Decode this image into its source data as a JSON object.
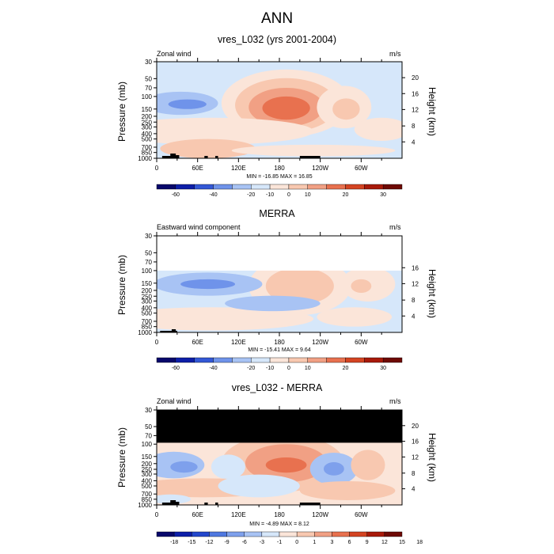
{
  "main_title": "ANN",
  "colors": {
    "c8": [
      "#08086b",
      "#0d1fa8",
      "#3358d6",
      "#6f93ea",
      "#a8c3f4",
      "#d6e7fa",
      "#fbe5d9",
      "#f8c8b0",
      "#f1a084",
      "#e8714f",
      "#d44422",
      "#a81a0a",
      "#6e0a04"
    ],
    "diff": [
      "#08086b",
      "#0d1fa8",
      "#2347cc",
      "#4f78e0",
      "#7ea0ec",
      "#a8c3f4",
      "#d6e7fa",
      "#fbe5d9",
      "#f8c8b0",
      "#f1a084",
      "#e8714f",
      "#d44422",
      "#a81a0a",
      "#6e0a04"
    ]
  },
  "panels": [
    {
      "title": "vres_L032 (yrs 2001-2004)",
      "left_label": "Zonal wind",
      "units": "m/s",
      "y_axis_title": "Pressure (mb)",
      "right_axis_title": "Height (km)",
      "minmax": "MIN = -16.85  MAX =  16.85",
      "colorbar_labels": [
        "-60",
        "-40",
        "-20",
        "-10",
        "0",
        "10",
        "20",
        "30"
      ]
    },
    {
      "title": "MERRA",
      "left_label": "Eastward wind component",
      "units": "m/s",
      "y_axis_title": "Pressure (mb)",
      "right_axis_title": "Height (km)",
      "minmax": "MIN = -15.41  MAX =   9.64",
      "colorbar_labels": [
        "-60",
        "-40",
        "-20",
        "-10",
        "0",
        "10",
        "20",
        "30"
      ]
    },
    {
      "title": "vres_L032 - MERRA",
      "left_label": "Zonal wind",
      "units": "m/s",
      "y_axis_title": "Pressure (mb)",
      "right_axis_title": "Height (km)",
      "minmax": "MIN =  -4.89  MAX =   8.12",
      "colorbar_labels": [
        "-18",
        "-15",
        "-12",
        "-9",
        "-6",
        "-3",
        "-1",
        "0",
        "1",
        "3",
        "6",
        "9",
        "12",
        "15",
        "18"
      ]
    }
  ],
  "chart_data": [
    {
      "type": "heatmap",
      "title": "vres_L032 (yrs 2001-2004)",
      "subtitle": "Zonal wind",
      "units": "m/s",
      "ylabel": "Pressure (mb)",
      "ylabel_right": "Height (km)",
      "x_ticks": [
        "0",
        "60E",
        "120E",
        "180",
        "120W",
        "60W"
      ],
      "y_ticks": [
        "30",
        "50",
        "70",
        "100",
        "150",
        "200",
        "250",
        "300",
        "400",
        "500",
        "700",
        "850",
        "1000"
      ],
      "y_ticks_right": [
        "4",
        "8",
        "12",
        "16",
        "20"
      ],
      "min": -16.85,
      "max": 16.85,
      "levels": [
        -60,
        -40,
        -20,
        -10,
        0,
        10,
        20,
        30
      ],
      "features": [
        {
          "lon": 30,
          "p": 150,
          "value": -14
        },
        {
          "lon": 190,
          "p": 150,
          "value": 16
        },
        {
          "lon": 270,
          "p": 175,
          "value": 9
        },
        {
          "lon": 70,
          "p": 700,
          "value": 6
        }
      ]
    },
    {
      "type": "heatmap",
      "title": "MERRA",
      "subtitle": "Eastward wind component",
      "units": "m/s",
      "ylabel": "Pressure (mb)",
      "ylabel_right": "Height (km)",
      "x_ticks": [
        "0",
        "60E",
        "120E",
        "180",
        "120W",
        "60W"
      ],
      "y_ticks": [
        "30",
        "50",
        "70",
        "100",
        "150",
        "200",
        "250",
        "300",
        "400",
        "500",
        "700",
        "850",
        "1000"
      ],
      "y_ticks_right": [
        "4",
        "8",
        "12",
        "16"
      ],
      "min": -15.41,
      "max": 9.64,
      "levels": [
        -60,
        -40,
        -20,
        -10,
        0,
        10,
        20,
        30
      ],
      "features": [
        {
          "lon": 70,
          "p": 150,
          "value": -14
        },
        {
          "lon": 210,
          "p": 150,
          "value": 9
        },
        {
          "lon": 300,
          "p": 150,
          "value": 6
        }
      ]
    },
    {
      "type": "heatmap",
      "title": "vres_L032 - MERRA",
      "subtitle": "Zonal wind",
      "units": "m/s",
      "ylabel": "Pressure (mb)",
      "ylabel_right": "Height (km)",
      "x_ticks": [
        "0",
        "60E",
        "120E",
        "180",
        "120W",
        "60W"
      ],
      "y_ticks": [
        "30",
        "50",
        "70",
        "100",
        "150",
        "200",
        "250",
        "300",
        "400",
        "500",
        "700",
        "850",
        "1000"
      ],
      "y_ticks_right": [
        "4",
        "8",
        "12",
        "16",
        "20"
      ],
      "min": -4.89,
      "max": 8.12,
      "levels": [
        -18,
        -15,
        -12,
        -9,
        -6,
        -3,
        -1,
        0,
        1,
        3,
        6,
        9,
        12,
        15,
        18
      ],
      "features": [
        {
          "lon": 180,
          "p": 150,
          "value": 7
        },
        {
          "lon": 260,
          "p": 200,
          "value": -4
        },
        {
          "lon": 20,
          "p": 200,
          "value": -3
        }
      ]
    }
  ]
}
